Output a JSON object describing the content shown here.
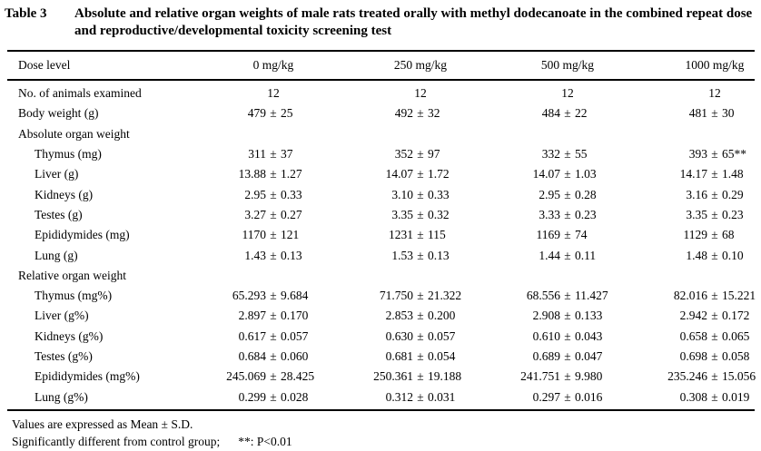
{
  "title": {
    "label": "Table 3",
    "text": "Absolute and relative organ weights of male rats treated orally with methyl dodecanoate in the combined repeat dose and reproductive/developmental toxicity screening test"
  },
  "header": {
    "col0": "Dose level",
    "doses": [
      "0 mg/kg",
      "250 mg/kg",
      "500 mg/kg",
      "1000 mg/kg"
    ]
  },
  "rows": [
    {
      "label": "No. of animals examined",
      "indent": 0,
      "type": "single",
      "values": [
        "12",
        "12",
        "12",
        "12"
      ]
    },
    {
      "label": "Body weight (g)",
      "indent": 0,
      "type": "pm",
      "values": [
        {
          "mean": "479",
          "sd": "25"
        },
        {
          "mean": "492",
          "sd": "32"
        },
        {
          "mean": "484",
          "sd": "22"
        },
        {
          "mean": "481",
          "sd": "30"
        }
      ]
    },
    {
      "label": "Absolute organ weight",
      "indent": 0,
      "type": "section",
      "values": []
    },
    {
      "label": "Thymus (mg)",
      "indent": 1,
      "type": "pm",
      "values": [
        {
          "mean": "311",
          "sd": "37"
        },
        {
          "mean": "352",
          "sd": "97"
        },
        {
          "mean": "332",
          "sd": "55"
        },
        {
          "mean": "393",
          "sd": "65**"
        }
      ]
    },
    {
      "label": "Liver (g)",
      "indent": 1,
      "type": "pm",
      "values": [
        {
          "mean": "13.88",
          "sd": "1.27"
        },
        {
          "mean": "14.07",
          "sd": "1.72"
        },
        {
          "mean": "14.07",
          "sd": "1.03"
        },
        {
          "mean": "14.17",
          "sd": "1.48"
        }
      ]
    },
    {
      "label": "Kidneys (g)",
      "indent": 1,
      "type": "pm",
      "values": [
        {
          "mean": "2.95",
          "sd": "0.33"
        },
        {
          "mean": "3.10",
          "sd": "0.33"
        },
        {
          "mean": "2.95",
          "sd": "0.28"
        },
        {
          "mean": "3.16",
          "sd": "0.29"
        }
      ]
    },
    {
      "label": "Testes (g)",
      "indent": 1,
      "type": "pm",
      "values": [
        {
          "mean": "3.27",
          "sd": "0.27"
        },
        {
          "mean": "3.35",
          "sd": "0.32"
        },
        {
          "mean": "3.33",
          "sd": "0.23"
        },
        {
          "mean": "3.35",
          "sd": "0.23"
        }
      ]
    },
    {
      "label": "Epididymides (mg)",
      "indent": 1,
      "type": "pm",
      "values": [
        {
          "mean": "1170",
          "sd": "121"
        },
        {
          "mean": "1231",
          "sd": "115"
        },
        {
          "mean": "1169",
          "sd": "74"
        },
        {
          "mean": "1129",
          "sd": "68"
        }
      ]
    },
    {
      "label": "Lung (g)",
      "indent": 1,
      "type": "pm",
      "values": [
        {
          "mean": "1.43",
          "sd": "0.13"
        },
        {
          "mean": "1.53",
          "sd": "0.13"
        },
        {
          "mean": "1.44",
          "sd": "0.11"
        },
        {
          "mean": "1.48",
          "sd": "0.10"
        }
      ]
    },
    {
      "label": "Relative organ weight",
      "indent": 0,
      "type": "section",
      "values": []
    },
    {
      "label": "Thymus (mg%)",
      "indent": 1,
      "type": "pm",
      "values": [
        {
          "mean": "65.293",
          "sd": "9.684"
        },
        {
          "mean": "71.750",
          "sd": "21.322"
        },
        {
          "mean": "68.556",
          "sd": "11.427"
        },
        {
          "mean": "82.016",
          "sd": "15.221"
        }
      ]
    },
    {
      "label": "Liver (g%)",
      "indent": 1,
      "type": "pm",
      "values": [
        {
          "mean": "2.897",
          "sd": "0.170"
        },
        {
          "mean": "2.853",
          "sd": "0.200"
        },
        {
          "mean": "2.908",
          "sd": "0.133"
        },
        {
          "mean": "2.942",
          "sd": "0.172"
        }
      ]
    },
    {
      "label": "Kidneys (g%)",
      "indent": 1,
      "type": "pm",
      "values": [
        {
          "mean": "0.617",
          "sd": "0.057"
        },
        {
          "mean": "0.630",
          "sd": "0.057"
        },
        {
          "mean": "0.610",
          "sd": "0.043"
        },
        {
          "mean": "0.658",
          "sd": "0.065"
        }
      ]
    },
    {
      "label": "Testes (g%)",
      "indent": 1,
      "type": "pm",
      "values": [
        {
          "mean": "0.684",
          "sd": "0.060"
        },
        {
          "mean": "0.681",
          "sd": "0.054"
        },
        {
          "mean": "0.689",
          "sd": "0.047"
        },
        {
          "mean": "0.698",
          "sd": "0.058"
        }
      ]
    },
    {
      "label": "Epididymides (mg%)",
      "indent": 1,
      "type": "pm",
      "values": [
        {
          "mean": "245.069",
          "sd": "28.425"
        },
        {
          "mean": "250.361",
          "sd": "19.188"
        },
        {
          "mean": "241.751",
          "sd": "9.980"
        },
        {
          "mean": "235.246",
          "sd": "15.056"
        }
      ]
    },
    {
      "label": "Lung (g%)",
      "indent": 1,
      "type": "pm",
      "values": [
        {
          "mean": "0.299",
          "sd": "0.028"
        },
        {
          "mean": "0.312",
          "sd": "0.031"
        },
        {
          "mean": "0.297",
          "sd": "0.016"
        },
        {
          "mean": "0.308",
          "sd": "0.019"
        }
      ]
    }
  ],
  "plus_minus_sign": "±",
  "footnotes": [
    "Values are expressed as Mean ± S.D.",
    "Significantly different from control group;",
    "**: P<0.01"
  ]
}
